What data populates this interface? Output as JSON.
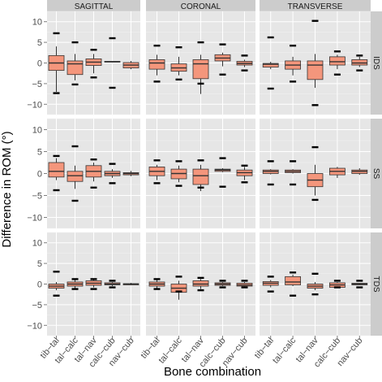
{
  "chart_data": {
    "type": "box",
    "ylabel": "Difference in ROM (°)",
    "xlabel": "Bone combination",
    "columns": [
      "SAGITTAL",
      "CORONAL",
      "TRANSVERSE"
    ],
    "rows": [
      "IDS",
      "SS",
      "TDS"
    ],
    "categories": [
      "tib−tal",
      "tal−calc",
      "tal−nav",
      "calc−cub",
      "nav−cub"
    ],
    "ylim": [
      -12.5,
      12.5
    ],
    "yticks": [
      -10,
      -5,
      0,
      5,
      10
    ],
    "grid": true,
    "box_color": "#f4967c",
    "panel_background": "#e6e6e6",
    "strip_background": "#cccccc",
    "panels": [
      {
        "row": "IDS",
        "column": "SAGITTAL",
        "boxes": [
          {
            "q1": -1.8,
            "median": 0.0,
            "q3": 1.8,
            "whisker_low": -7.0,
            "whisker_high": 4.0,
            "outliers": [
              7.2,
              -7.3
            ]
          },
          {
            "q1": -2.8,
            "median": -0.2,
            "q3": 0.5,
            "whisker_low": -4.2,
            "whisker_high": 2.2,
            "outliers": [
              5.0,
              -5.2
            ]
          },
          {
            "q1": -0.6,
            "median": 0.2,
            "q3": 1.0,
            "whisker_low": -2.5,
            "whisker_high": 2.2,
            "outliers": [
              3.2,
              -3.5
            ]
          },
          {
            "q1": 0.2,
            "median": 0.3,
            "q3": 0.4,
            "whisker_low": 0.2,
            "whisker_high": 0.4,
            "outliers": [
              6.0,
              -6.0
            ]
          },
          {
            "q1": -1.2,
            "median": -0.5,
            "q3": 0.1,
            "whisker_low": -1.5,
            "whisker_high": 0.5,
            "outliers": []
          }
        ]
      },
      {
        "row": "IDS",
        "column": "CORONAL",
        "boxes": [
          {
            "q1": -1.5,
            "median": 0.0,
            "q3": 0.8,
            "whisker_low": -3.0,
            "whisker_high": 2.0,
            "outliers": [
              4.2,
              -4.5
            ]
          },
          {
            "q1": -2.0,
            "median": -1.2,
            "q3": -0.2,
            "whisker_low": -3.0,
            "whisker_high": 1.5,
            "outliers": [
              3.8,
              -4.0
            ]
          },
          {
            "q1": -3.8,
            "median": -0.2,
            "q3": 0.8,
            "whisker_low": -7.5,
            "whisker_high": 2.0,
            "outliers": [
              5.0,
              -5.0
            ]
          },
          {
            "q1": 0.5,
            "median": 1.2,
            "q3": 2.0,
            "whisker_low": -0.8,
            "whisker_high": 2.5,
            "outliers": [
              4.5,
              -2.8
            ]
          },
          {
            "q1": -0.5,
            "median": -0.1,
            "q3": 0.4,
            "whisker_low": -1.0,
            "whisker_high": 0.8,
            "outliers": [
              1.8,
              -1.8
            ]
          }
        ]
      },
      {
        "row": "IDS",
        "column": "TRANSVERSE",
        "boxes": [
          {
            "q1": -1.0,
            "median": -0.3,
            "q3": -0.1,
            "whisker_low": -1.5,
            "whisker_high": 0.3,
            "outliers": [
              6.2,
              -6.2
            ]
          },
          {
            "q1": -1.5,
            "median": -0.5,
            "q3": 0.5,
            "whisker_low": -3.0,
            "whisker_high": 1.5,
            "outliers": [
              4.2,
              -4.5
            ]
          },
          {
            "q1": -4.0,
            "median": -0.5,
            "q3": 0.5,
            "whisker_low": -6.0,
            "whisker_high": 2.2,
            "outliers": [
              10.2,
              -10.2
            ]
          },
          {
            "q1": -0.5,
            "median": 0.3,
            "q3": 1.5,
            "whisker_low": -1.5,
            "whisker_high": 2.0,
            "outliers": [
              2.8,
              -2.8
            ]
          },
          {
            "q1": -0.5,
            "median": 0.0,
            "q3": 0.8,
            "whisker_low": -1.0,
            "whisker_high": 1.5,
            "outliers": [
              1.8,
              -1.8
            ]
          }
        ]
      },
      {
        "row": "SS",
        "column": "SAGITTAL",
        "boxes": [
          {
            "q1": -0.8,
            "median": 0.5,
            "q3": 2.5,
            "whisker_low": -1.5,
            "whisker_high": 3.5,
            "outliers": [
              4.0,
              -3.8
            ]
          },
          {
            "q1": -1.8,
            "median": -0.5,
            "q3": 0.5,
            "whisker_low": -3.5,
            "whisker_high": 1.8,
            "outliers": [
              6.2,
              -6.2
            ]
          },
          {
            "q1": -0.8,
            "median": 0.5,
            "q3": 1.8,
            "whisker_low": -1.8,
            "whisker_high": 2.5,
            "outliers": [
              3.2,
              -3.2
            ]
          },
          {
            "q1": -0.5,
            "median": 0.0,
            "q3": 0.5,
            "whisker_low": -1.0,
            "whisker_high": 1.0,
            "outliers": [
              2.2,
              -2.2
            ]
          },
          {
            "q1": -0.3,
            "median": 0.0,
            "q3": 0.2,
            "whisker_low": -0.6,
            "whisker_high": 0.6,
            "outliers": []
          }
        ]
      },
      {
        "row": "SS",
        "column": "CORONAL",
        "boxes": [
          {
            "q1": -0.5,
            "median": 0.5,
            "q3": 1.5,
            "whisker_low": -1.5,
            "whisker_high": 2.0,
            "outliers": [
              3.0,
              -2.2
            ]
          },
          {
            "q1": -1.2,
            "median": 0.0,
            "q3": 1.0,
            "whisker_low": -2.0,
            "whisker_high": 1.8,
            "outliers": [
              2.8,
              -2.8
            ]
          },
          {
            "q1": -2.5,
            "median": -0.5,
            "q3": 1.0,
            "whisker_low": -4.0,
            "whisker_high": 2.0,
            "outliers": [
              3.0,
              -3.2
            ]
          },
          {
            "q1": 0.5,
            "median": 0.8,
            "q3": 1.0,
            "whisker_low": 0.3,
            "whisker_high": 1.2,
            "outliers": [
              3.5,
              -3.0
            ]
          },
          {
            "q1": -0.5,
            "median": 0.2,
            "q3": 0.8,
            "whisker_low": -1.5,
            "whisker_high": 1.5,
            "outliers": [
              1.8,
              -2.0
            ]
          }
        ]
      },
      {
        "row": "SS",
        "column": "TRANSVERSE",
        "boxes": [
          {
            "q1": 0.0,
            "median": 0.5,
            "q3": 0.8,
            "whisker_low": -0.2,
            "whisker_high": 1.0,
            "outliers": [
              2.8,
              -2.5
            ]
          },
          {
            "q1": 0.2,
            "median": 0.5,
            "q3": 0.8,
            "whisker_low": 0.0,
            "whisker_high": 1.0,
            "outliers": [
              2.8,
              -2.5
            ]
          },
          {
            "q1": -3.0,
            "median": -1.5,
            "q3": 0.0,
            "whisker_low": -5.0,
            "whisker_high": 2.0,
            "outliers": [
              6.0,
              -6.0
            ]
          },
          {
            "q1": -0.3,
            "median": 0.5,
            "q3": 1.2,
            "whisker_low": -1.0,
            "whisker_high": 1.5,
            "outliers": []
          },
          {
            "q1": 0.0,
            "median": 0.5,
            "q3": 0.8,
            "whisker_low": -0.3,
            "whisker_high": 1.2,
            "outliers": []
          }
        ]
      },
      {
        "row": "TDS",
        "column": "SAGITTAL",
        "boxes": [
          {
            "q1": -1.0,
            "median": -0.5,
            "q3": 0.0,
            "whisker_low": -1.5,
            "whisker_high": 0.5,
            "outliers": [
              3.0,
              -2.8
            ]
          },
          {
            "q1": -0.5,
            "median": 0.0,
            "q3": 0.5,
            "whisker_low": -1.0,
            "whisker_high": 1.0,
            "outliers": [
              1.2,
              -1.2
            ]
          },
          {
            "q1": -0.3,
            "median": 0.2,
            "q3": 0.8,
            "whisker_low": -0.8,
            "whisker_high": 1.2,
            "outliers": [
              1.2,
              -1.2
            ]
          },
          {
            "q1": -0.2,
            "median": 0.0,
            "q3": 0.3,
            "whisker_low": -0.5,
            "whisker_high": 0.5,
            "outliers": [
              0.8,
              -0.8
            ]
          },
          {
            "q1": -0.2,
            "median": 0.0,
            "q3": 0.1,
            "whisker_low": -0.3,
            "whisker_high": 0.3,
            "outliers": []
          }
        ]
      },
      {
        "row": "TDS",
        "column": "CORONAL",
        "boxes": [
          {
            "q1": -0.5,
            "median": 0.0,
            "q3": 0.5,
            "whisker_low": -1.0,
            "whisker_high": 1.0,
            "outliers": [
              1.2,
              -1.2
            ]
          },
          {
            "q1": -2.0,
            "median": -1.0,
            "q3": 0.0,
            "whisker_low": -3.8,
            "whisker_high": 0.8,
            "outliers": [
              1.8,
              -1.8
            ]
          },
          {
            "q1": -0.5,
            "median": 0.0,
            "q3": 0.8,
            "whisker_low": -1.2,
            "whisker_high": 1.2,
            "outliers": [
              1.5,
              -1.5
            ]
          },
          {
            "q1": -0.3,
            "median": 0.0,
            "q3": 0.3,
            "whisker_low": -0.5,
            "whisker_high": 0.5,
            "outliers": [
              0.8,
              -0.8
            ]
          },
          {
            "q1": -0.5,
            "median": -0.2,
            "q3": 0.2,
            "whisker_low": -0.8,
            "whisker_high": 0.5,
            "outliers": [
              0.8,
              -0.8
            ]
          }
        ]
      },
      {
        "row": "TDS",
        "column": "TRANSVERSE",
        "boxes": [
          {
            "q1": -0.3,
            "median": 0.2,
            "q3": 0.6,
            "whisker_low": -0.8,
            "whisker_high": 1.0,
            "outliers": [
              1.8,
              -1.8
            ]
          },
          {
            "q1": -0.2,
            "median": 0.5,
            "q3": 1.8,
            "whisker_low": -0.5,
            "whisker_high": 2.3,
            "outliers": [
              2.8,
              -2.8
            ]
          },
          {
            "q1": -1.0,
            "median": -0.5,
            "q3": 0.0,
            "whisker_low": -1.5,
            "whisker_high": 0.5,
            "outliers": [
              2.5,
              -2.5
            ]
          },
          {
            "q1": -0.8,
            "median": -0.2,
            "q3": 0.3,
            "whisker_low": -1.0,
            "whisker_high": 0.5,
            "outliers": [
              0.8,
              -0.8
            ]
          },
          {
            "q1": -0.2,
            "median": 0.0,
            "q3": 0.2,
            "whisker_low": -0.3,
            "whisker_high": 0.3,
            "outliers": [
              0.8,
              -0.8
            ]
          }
        ]
      }
    ]
  }
}
